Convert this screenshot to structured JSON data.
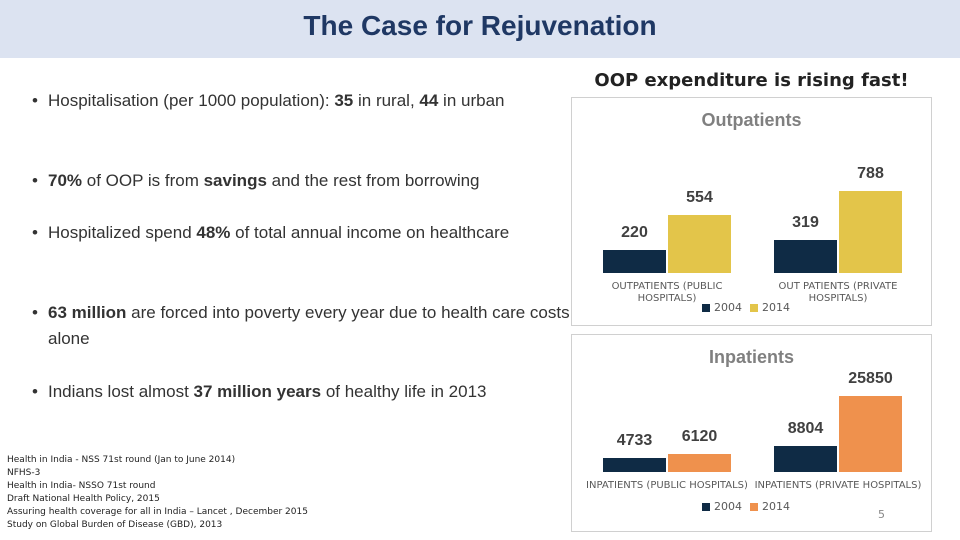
{
  "header": {
    "title": "The Case for Rejuvenation"
  },
  "bullets": [
    {
      "segments": [
        {
          "text": "Hospitalisation (per 1000 population): ",
          "bold": false
        },
        {
          "text": "35",
          "bold": true
        },
        {
          "text": " in rural, ",
          "bold": false
        },
        {
          "text": "44",
          "bold": true
        },
        {
          "text": " in urban",
          "bold": false
        }
      ]
    },
    {
      "segments": [
        {
          "text": "70%",
          "bold": true
        },
        {
          "text": " of OOP is from ",
          "bold": false
        },
        {
          "text": "savings",
          "bold": true
        },
        {
          "text": " and the rest from borrowing",
          "bold": false
        }
      ]
    },
    {
      "segments": [
        {
          "text": "Hospitalized spend ",
          "bold": false
        },
        {
          "text": "48%",
          "bold": true
        },
        {
          "text": " of total annual income on healthcare",
          "bold": false
        }
      ]
    },
    {
      "segments": [
        {
          "text": "63 million",
          "bold": true
        },
        {
          "text": " are forced into poverty every year due to health care costs alone",
          "bold": false
        }
      ]
    },
    {
      "segments": [
        {
          "text": "Indians lost almost ",
          "bold": false
        },
        {
          "text": "37 million years",
          "bold": true
        },
        {
          "text": " of healthy life in 2013",
          "bold": false
        }
      ]
    }
  ],
  "references": [
    "Health in India - NSS 71st round (Jan to June 2014)",
    "NFHS-3",
    "Health in India- NSSO 71st round",
    "Draft National Health Policy, 2015",
    "Assuring health coverage for all in India – Lancet , December 2015",
    "Study on Global Burden of Disease (GBD), 2013"
  ],
  "charts_heading": "OOP expenditure is rising fast!",
  "page_number": "5",
  "chart_data": [
    {
      "type": "bar",
      "title": "Outpatients",
      "categories": [
        "OUTPATIENTS (PUBLIC HOSPITALS)",
        "OUT PATIENTS (PRIVATE HOSPITALS)"
      ],
      "series": [
        {
          "name": "2004",
          "color": "#0f2b45",
          "values": [
            220,
            319
          ]
        },
        {
          "name": "2014",
          "color": "#e3c54a",
          "values": [
            554,
            788
          ]
        }
      ]
    },
    {
      "type": "bar",
      "title": "Inpatients",
      "categories": [
        "INPATIENTS (PUBLIC HOSPITALS)",
        "INPATIENTS (PRIVATE HOSPITALS)"
      ],
      "series": [
        {
          "name": "2004",
          "color": "#0f2b45",
          "values": [
            4733,
            8804
          ]
        },
        {
          "name": "2014",
          "color": "#ef914d",
          "values": [
            6120,
            25850
          ]
        }
      ]
    }
  ]
}
